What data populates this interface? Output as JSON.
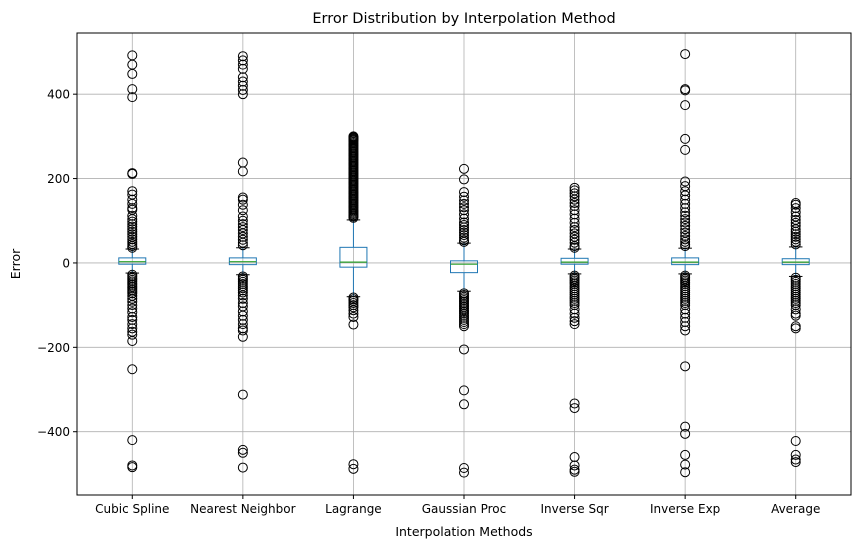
{
  "chart_data": {
    "type": "box",
    "title": "Error Distribution by Interpolation Method",
    "xlabel": "Interpolation Methods",
    "ylabel": "Error",
    "ylim": [
      -550,
      545
    ],
    "yticks": [
      -400,
      -200,
      0,
      200,
      400
    ],
    "grid": true,
    "colors": {
      "box": "#1f77b4",
      "median": "#2ca02c",
      "grid": "#b0b0b0",
      "outlier": "#000000"
    },
    "categories": [
      "Cubic Spline",
      "Nearest Neighbor",
      "Lagrange",
      "Gaussian Proc",
      "Inverse Sqr",
      "Inverse Exp",
      "Average"
    ],
    "boxes": [
      {
        "name": "Cubic Spline",
        "whislo": -24,
        "q1": -3,
        "median": 3,
        "q3": 12,
        "whishi": 33,
        "fliers": [
          492,
          470,
          448,
          412,
          393,
          213,
          211,
          170,
          162,
          150,
          140,
          130,
          126,
          112,
          104,
          98,
          92,
          86,
          80,
          74,
          68,
          62,
          56,
          50,
          45,
          40,
          36,
          -28,
          -32,
          -36,
          -40,
          -44,
          -48,
          -52,
          -56,
          -60,
          -64,
          -68,
          -72,
          -78,
          -85,
          -92,
          -100,
          -108,
          -117,
          -128,
          -135,
          -145,
          -155,
          -163,
          -170,
          -185,
          -252,
          -420,
          -480,
          -484
        ]
      },
      {
        "name": "Nearest Neighbor",
        "whislo": -28,
        "q1": -4,
        "median": 3,
        "q3": 12,
        "whishi": 36,
        "fliers": [
          490,
          480,
          470,
          460,
          440,
          430,
          420,
          410,
          400,
          238,
          217,
          155,
          150,
          138,
          125,
          110,
          100,
          92,
          85,
          78,
          70,
          62,
          55,
          48,
          42,
          -32,
          -36,
          -40,
          -45,
          -50,
          -55,
          -60,
          -65,
          -70,
          -77,
          -85,
          -95,
          -103,
          -115,
          -125,
          -135,
          -145,
          -155,
          -160,
          -175,
          -312,
          -443,
          -450,
          -485
        ]
      },
      {
        "name": "Lagrange",
        "whislo": -80,
        "q1": -10,
        "median": 2,
        "q3": 37,
        "whishi": 102,
        "fliers": [
          300,
          298,
          296,
          294,
          292,
          290,
          287,
          284,
          281,
          278,
          275,
          272,
          269,
          266,
          263,
          260,
          257,
          254,
          251,
          248,
          245,
          242,
          239,
          236,
          233,
          230,
          227,
          224,
          221,
          218,
          215,
          212,
          209,
          206,
          203,
          200,
          197,
          194,
          191,
          188,
          185,
          182,
          179,
          176,
          173,
          170,
          167,
          164,
          161,
          158,
          155,
          152,
          149,
          146,
          143,
          140,
          137,
          134,
          131,
          128,
          125,
          122,
          119,
          116,
          113,
          110,
          107,
          -82,
          -86,
          -90,
          -95,
          -100,
          -105,
          -112,
          -120,
          -128,
          -146,
          -477,
          -488
        ]
      },
      {
        "name": "Gaussian Proc",
        "whislo": -67,
        "q1": -23,
        "median": -3,
        "q3": 5,
        "whishi": 47,
        "fliers": [
          223,
          198,
          168,
          157,
          148,
          140,
          132,
          125,
          115,
          105,
          96,
          90,
          84,
          78,
          72,
          66,
          60,
          54,
          50,
          -72,
          -76,
          -80,
          -84,
          -88,
          -92,
          -96,
          -100,
          -104,
          -108,
          -112,
          -116,
          -120,
          -125,
          -130,
          -135,
          -140,
          -145,
          -150,
          -205,
          -302,
          -335,
          -486,
          -497
        ]
      },
      {
        "name": "Inverse Sqr",
        "whislo": -26,
        "q1": -3,
        "median": 2,
        "q3": 11,
        "whishi": 33,
        "fliers": [
          178,
          172,
          165,
          158,
          150,
          142,
          135,
          125,
          115,
          105,
          95,
          85,
          78,
          70,
          62,
          55,
          48,
          40,
          36,
          -30,
          -34,
          -38,
          -42,
          -46,
          -50,
          -55,
          -60,
          -65,
          -70,
          -75,
          -80,
          -85,
          -90,
          -95,
          -100,
          -110,
          -120,
          -130,
          -138,
          -145,
          -333,
          -344,
          -460,
          -480,
          -490,
          -495
        ]
      },
      {
        "name": "Inverse Exp",
        "whislo": -26,
        "q1": -4,
        "median": 2,
        "q3": 12,
        "whishi": 35,
        "fliers": [
          495,
          412,
          409,
          374,
          294,
          268,
          193,
          182,
          170,
          160,
          150,
          140,
          130,
          120,
          112,
          104,
          96,
          88,
          80,
          72,
          64,
          56,
          50,
          44,
          40,
          -30,
          -34,
          -38,
          -42,
          -46,
          -50,
          -55,
          -60,
          -65,
          -70,
          -75,
          -80,
          -85,
          -90,
          -95,
          -100,
          -110,
          -120,
          -130,
          -140,
          -150,
          -160,
          -245,
          -388,
          -405,
          -455,
          -478,
          -496
        ]
      },
      {
        "name": "Average",
        "whislo": -32,
        "q1": -4,
        "median": 2,
        "q3": 10,
        "whishi": 38,
        "fliers": [
          142,
          138,
          130,
          120,
          110,
          102,
          95,
          88,
          80,
          74,
          68,
          62,
          56,
          50,
          44,
          -35,
          -40,
          -45,
          -50,
          -55,
          -60,
          -65,
          -70,
          -75,
          -80,
          -85,
          -90,
          -95,
          -100,
          -110,
          -120,
          -125,
          -150,
          -155,
          -422,
          -455,
          -466,
          -472
        ]
      }
    ]
  }
}
